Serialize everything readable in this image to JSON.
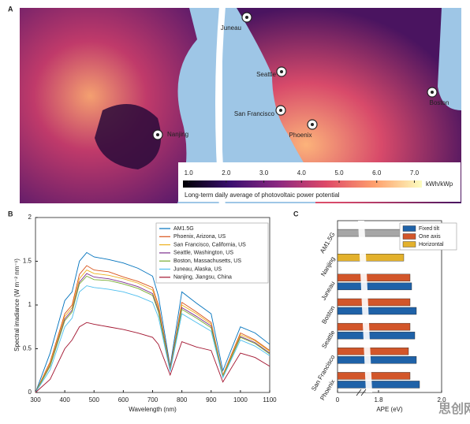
{
  "map": {
    "panel": "A",
    "locations": [
      {
        "name": "Juneau"
      },
      {
        "name": "Seattle"
      },
      {
        "name": "San Francisco"
      },
      {
        "name": "Phoenix"
      },
      {
        "name": "Boston"
      },
      {
        "name": "Nanjing"
      }
    ],
    "colorbar": {
      "clim": [
        0.85,
        7.2
      ],
      "ticks": [
        {
          "value": 1,
          "label": "1.0"
        },
        {
          "value": 2,
          "label": "2.0"
        },
        {
          "value": 3,
          "label": "3.0"
        },
        {
          "value": 4,
          "label": "4.0"
        },
        {
          "value": 5,
          "label": "5.0"
        },
        {
          "value": 6,
          "label": "6.0"
        },
        {
          "value": 7,
          "label": "7.0"
        }
      ],
      "unit": "kWh/kWp",
      "caption": "Long-term daily average of photovoltaic power potential"
    }
  },
  "chart_data": [
    {
      "type": "line",
      "panel": "B",
      "x_label": "Wavelength (nm)",
      "y_label": "Spectral irradiance (W m⁻² nm⁻¹)",
      "x": [
        300,
        350,
        400,
        425,
        450,
        475,
        500,
        550,
        600,
        650,
        700,
        720,
        760,
        800,
        850,
        900,
        940,
        1000,
        1050,
        1100
      ],
      "xlim": [
        300,
        1100
      ],
      "xticks": [
        300,
        400,
        500,
        600,
        700,
        800,
        900,
        1000,
        1100
      ],
      "ylim": [
        0,
        2
      ],
      "yticks": [
        0,
        0.5,
        1,
        1.5,
        2
      ],
      "series": [
        {
          "name": "AM1.5G",
          "color": "#0072BD",
          "values": [
            0,
            0.45,
            1.05,
            1.15,
            1.5,
            1.6,
            1.55,
            1.52,
            1.48,
            1.42,
            1.33,
            1.1,
            0.3,
            1.15,
            1.02,
            0.9,
            0.25,
            0.75,
            0.68,
            0.55
          ]
        },
        {
          "name": "Phoenix, Arizona, US",
          "color": "#D95319",
          "values": [
            0,
            0.35,
            0.9,
            1.0,
            1.35,
            1.45,
            1.4,
            1.38,
            1.32,
            1.27,
            1.2,
            1.0,
            0.28,
            1.03,
            0.92,
            0.8,
            0.2,
            0.68,
            0.6,
            0.48
          ]
        },
        {
          "name": "San Francisco, California, US",
          "color": "#EDB120",
          "values": [
            0,
            0.33,
            0.87,
            0.97,
            1.3,
            1.4,
            1.36,
            1.34,
            1.3,
            1.25,
            1.17,
            0.97,
            0.27,
            1.0,
            0.9,
            0.78,
            0.19,
            0.66,
            0.59,
            0.47
          ]
        },
        {
          "name": "Seattle, Washington, US",
          "color": "#7E2F8E",
          "values": [
            0,
            0.31,
            0.84,
            0.94,
            1.26,
            1.36,
            1.32,
            1.3,
            1.26,
            1.21,
            1.13,
            0.94,
            0.26,
            0.97,
            0.87,
            0.76,
            0.18,
            0.64,
            0.57,
            0.45
          ]
        },
        {
          "name": "Boston, Massachusetts, US",
          "color": "#77AC30",
          "values": [
            0,
            0.3,
            0.82,
            0.92,
            1.24,
            1.33,
            1.29,
            1.28,
            1.24,
            1.19,
            1.11,
            0.92,
            0.25,
            0.95,
            0.85,
            0.74,
            0.18,
            0.63,
            0.56,
            0.44
          ]
        },
        {
          "name": "Juneau, Alaska, US",
          "color": "#4DBEEE",
          "values": [
            0,
            0.26,
            0.75,
            0.85,
            1.15,
            1.22,
            1.2,
            1.18,
            1.15,
            1.1,
            1.03,
            0.86,
            0.24,
            0.9,
            0.8,
            0.7,
            0.17,
            0.6,
            0.53,
            0.42
          ]
        },
        {
          "name": "Nanjing, Jiangsu, China",
          "color": "#A2142F",
          "values": [
            0,
            0.15,
            0.5,
            0.6,
            0.75,
            0.8,
            0.78,
            0.75,
            0.72,
            0.68,
            0.63,
            0.55,
            0.2,
            0.58,
            0.52,
            0.48,
            0.12,
            0.45,
            0.4,
            0.3
          ]
        }
      ]
    },
    {
      "type": "hbar",
      "panel": "C",
      "x_label": "APE (eV)",
      "categories": [
        "AM1.5G",
        "Nanjing",
        "Juneau",
        "Boston",
        "Seattle",
        "San Francisco",
        "Phoenix"
      ],
      "xlim": [
        0,
        2.0
      ],
      "xticks": [
        0,
        1.8,
        {
          "value": 2.0,
          "label": "2.0"
        }
      ],
      "axis_break": true,
      "series": [
        {
          "color": "#a6a6a6",
          "values": [
            1.93,
            null,
            null,
            null,
            null,
            null,
            null
          ]
        },
        {
          "name": "Fixed tilt",
          "color": "#1f62a8",
          "values": [
            null,
            null,
            1.905,
            1.92,
            1.915,
            1.92,
            1.93
          ]
        },
        {
          "name": "One axis",
          "color": "#d2562a",
          "values": [
            null,
            null,
            1.9,
            1.9,
            1.9,
            1.895,
            1.9
          ]
        },
        {
          "name": "Horizontal",
          "color": "#e3b12c",
          "values": [
            null,
            1.88,
            null,
            null,
            null,
            null,
            null
          ]
        }
      ]
    }
  ],
  "watermark": "思创网"
}
